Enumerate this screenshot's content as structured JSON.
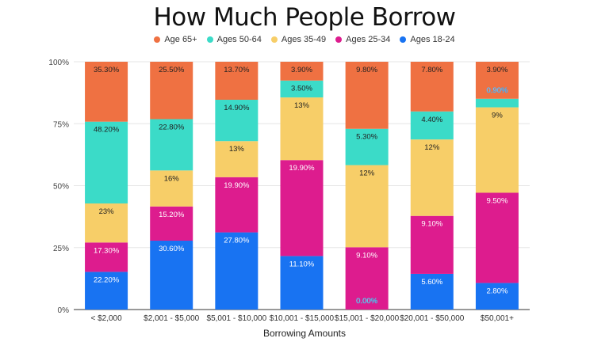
{
  "chart_data": {
    "type": "bar",
    "stacked": "percent",
    "title": "How Much People Borrow",
    "xlabel": "Borrowing Amounts",
    "ylabel": "",
    "ylim": [
      0,
      100
    ],
    "yticks": [
      "0%",
      "25%",
      "50%",
      "75%",
      "100%"
    ],
    "grid": true,
    "legend_position": "top",
    "categories": [
      "< $2,000",
      "$2,001 - $5,000",
      "$5,001 - $10,000",
      "$10,001 - $15,000",
      "$15,001 - $20,000",
      "$20,001 - $50,000",
      "$50,001+"
    ],
    "series": [
      {
        "name": "Ages 18-24",
        "color": "#1873F2",
        "values": [
          22.2,
          30.6,
          27.8,
          11.1,
          0.0,
          5.6,
          2.8
        ],
        "labels": [
          "22.20%",
          "30.60%",
          "27.80%",
          "11.10%",
          "0.00%",
          "5.60%",
          "2.80%"
        ]
      },
      {
        "name": "Ages 25-34",
        "color": "#DD1C8E",
        "values": [
          17.3,
          15.2,
          19.9,
          19.9,
          9.1,
          9.1,
          9.5
        ],
        "labels": [
          "17.30%",
          "15.20%",
          "19.90%",
          "19.90%",
          "9.10%",
          "9.10%",
          "9.50%"
        ]
      },
      {
        "name": "Ages 35-49",
        "color": "#F7CE68",
        "values": [
          23,
          16,
          13,
          13,
          12,
          12,
          9
        ],
        "labels": [
          "23%",
          "16%",
          "13%",
          "13%",
          "12%",
          "12%",
          "9%"
        ]
      },
      {
        "name": "Ages 50-64",
        "color": "#3BDBC8",
        "values": [
          48.2,
          22.8,
          14.9,
          3.5,
          5.3,
          4.4,
          0.9
        ],
        "labels": [
          "48.20%",
          "22.80%",
          "14.90%",
          "3.50%",
          "5.30%",
          "4.40%",
          "0.90%"
        ]
      },
      {
        "name": "Age 65+",
        "color": "#EF7142",
        "values": [
          35.3,
          25.5,
          13.7,
          3.9,
          9.8,
          7.8,
          3.9
        ],
        "labels": [
          "35.30%",
          "25.50%",
          "13.70%",
          "3.90%",
          "9.80%",
          "7.80%",
          "3.90%"
        ]
      }
    ],
    "legend_order": [
      "Age 65+",
      "Ages 50-64",
      "Ages 35-49",
      "Ages 25-34",
      "Ages 18-24"
    ]
  }
}
